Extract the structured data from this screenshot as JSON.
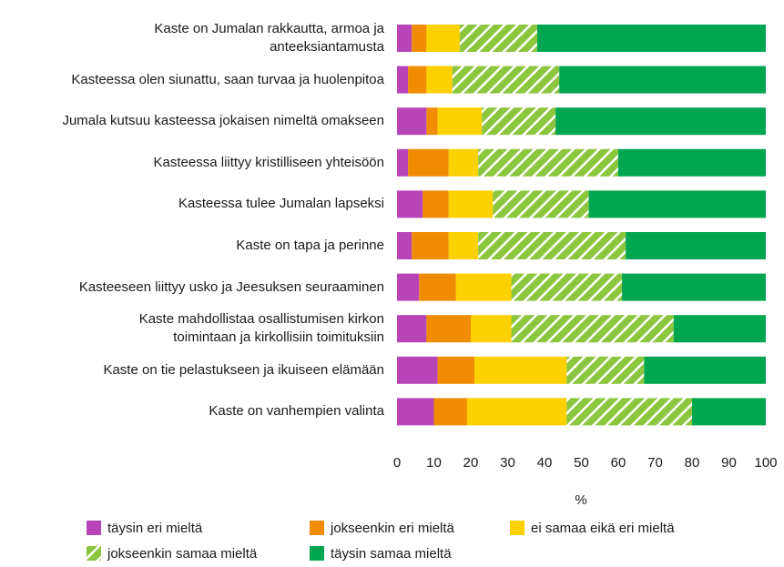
{
  "chart_data": {
    "type": "stacked-barh",
    "categories": [
      "Kaste on Jumalan rakkautta, armoa ja\nanteeksiantamusta",
      "Kasteessa olen siunattu, saan turvaa ja huolenpitoa",
      "Jumala kutsuu kasteessa jokaisen nimeltä omakseen",
      "Kasteessa liittyy kristilliseen yhteisöön",
      "Kasteessa tulee Jumalan lapseksi",
      "Kaste on tapa ja perinne",
      "Kasteeseen liittyy usko ja Jeesuksen seuraaminen",
      "Kaste mahdollistaa osallistumisen kirkon\ntoimintaan ja kirkollisiin toimituksiin",
      "Kaste on tie pelastukseen ja ikuiseen elämään",
      "Kaste on vanhempien valinta"
    ],
    "series": [
      {
        "name": "täysin eri mieltä",
        "color": "#b845b8",
        "values": [
          4,
          3,
          8,
          3,
          7,
          4,
          6,
          8,
          11,
          10
        ]
      },
      {
        "name": "jokseenkin eri mieltä",
        "color": "#f08c00",
        "values": [
          4,
          5,
          3,
          11,
          7,
          10,
          10,
          12,
          10,
          9
        ]
      },
      {
        "name": "ei samaa eikä eri mieltä",
        "color": "#fdd000",
        "values": [
          9,
          7,
          12,
          8,
          12,
          8,
          15,
          11,
          25,
          27
        ]
      },
      {
        "name": "jokseenkin samaa mieltä",
        "color": "#8cc63f",
        "pattern": "hatch",
        "values": [
          21,
          29,
          20,
          38,
          26,
          40,
          30,
          44,
          21,
          34
        ]
      },
      {
        "name": "täysin samaa mieltä",
        "color": "#00a650",
        "values": [
          62,
          56,
          57,
          40,
          48,
          38,
          39,
          25,
          33,
          20
        ]
      }
    ],
    "xlabel": "%",
    "xlim": [
      0,
      100
    ],
    "xticks": [
      0,
      10,
      20,
      30,
      40,
      50,
      60,
      70,
      80,
      90,
      100
    ],
    "grid": false,
    "legend": "bottom"
  }
}
